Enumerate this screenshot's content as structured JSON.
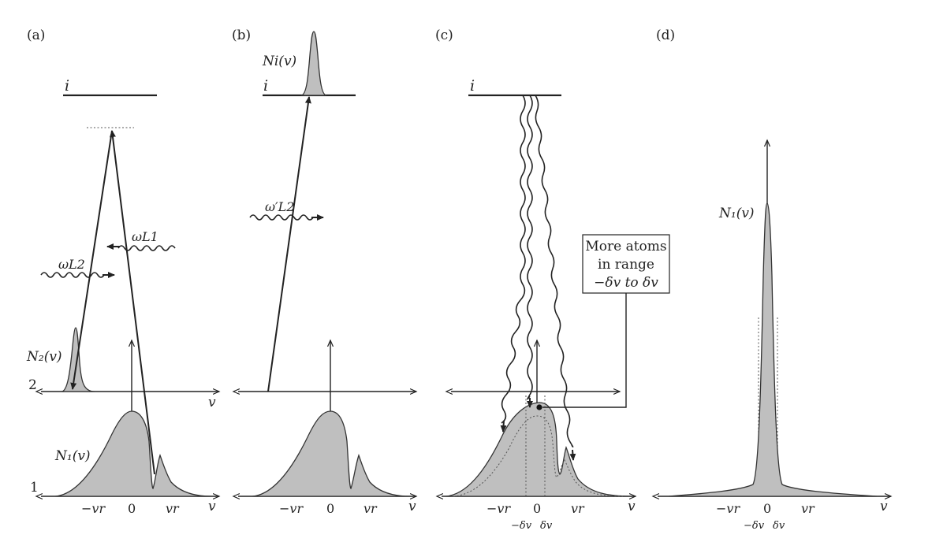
{
  "panels": {
    "a": {
      "tag": "(a)",
      "level_i": "i",
      "level_2": "2",
      "level_1": "1",
      "N2_label": "N₂(v)",
      "N1_label": "N₁(v)",
      "laser1": "ωL1",
      "laser2": "ωL2",
      "ticks": [
        "−vr",
        "0",
        "vr"
      ],
      "axis": "v"
    },
    "b": {
      "tag": "(b)",
      "level_i": "i",
      "Ni_label": "Ni(v)",
      "laser": "ω′L2",
      "ticks": [
        "−vr",
        "0",
        "vr"
      ],
      "axis": "v"
    },
    "c": {
      "tag": "(c)",
      "level_i": "i",
      "box_lines": [
        "More atoms",
        "in range",
        "−δv to δv"
      ],
      "ticks": [
        "−vr",
        "0",
        "vr"
      ],
      "small_ticks": [
        "−δv",
        "δv"
      ],
      "axis": "v"
    },
    "d": {
      "tag": "(d)",
      "N1_label": "N₁(v)",
      "ticks": [
        "−vr",
        "0",
        "vr"
      ],
      "small_ticks": [
        "−δv",
        "δv"
      ],
      "axis": "v"
    }
  },
  "icons": [
    "arrow-head-icon",
    "wavy-photon-icon"
  ]
}
